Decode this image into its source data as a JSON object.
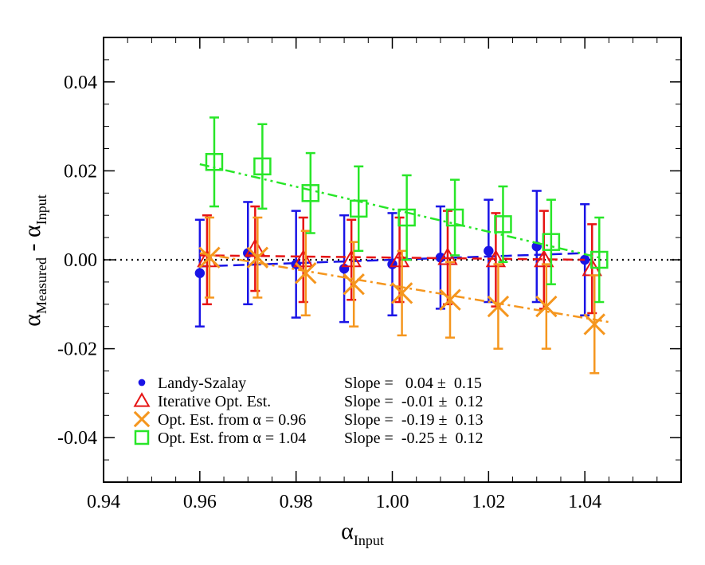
{
  "chart_data": {
    "type": "scatter",
    "xlabel": {
      "symbol": "α",
      "sub": "Input"
    },
    "ylabel": {
      "symbol": "α",
      "sub1": "Measured",
      "mid": " - ",
      "symbol2": "α",
      "sub2": "Input"
    },
    "xlim": [
      0.94,
      1.06
    ],
    "ylim": [
      -0.05,
      0.05
    ],
    "xticks": [
      {
        "value": 0.94,
        "label": "0.94"
      },
      {
        "value": 0.96,
        "label": "0.96"
      },
      {
        "value": 0.98,
        "label": "0.98"
      },
      {
        "value": 1.0,
        "label": "1.00"
      },
      {
        "value": 1.02,
        "label": "1.02"
      },
      {
        "value": 1.04,
        "label": "1.04"
      }
    ],
    "yticks": [
      {
        "value": 0.04,
        "label": "0.04"
      },
      {
        "value": 0.02,
        "label": "0.02"
      },
      {
        "value": 0.0,
        "label": "0.00"
      },
      {
        "value": -0.02,
        "label": "-0.02"
      },
      {
        "value": -0.04,
        "label": "-0.04"
      }
    ],
    "zero_line": true,
    "legend_position": "bottom-left",
    "series": [
      {
        "name": "Landy-Szalay",
        "slope_label": "Slope =   0.04 ±  0.15",
        "marker": "dot",
        "color": "#1a14e6",
        "x": [
          0.96,
          0.97,
          0.98,
          0.99,
          1.0,
          1.01,
          1.02,
          1.03,
          1.04
        ],
        "y": [
          -0.003,
          0.0015,
          -0.001,
          -0.002,
          -0.001,
          0.0005,
          0.002,
          0.003,
          0.0
        ],
        "err": [
          0.012,
          0.0115,
          0.012,
          0.012,
          0.0115,
          0.0115,
          0.0115,
          0.0125,
          0.0125
        ],
        "fit": {
          "x": [
            0.96,
            1.04
          ],
          "y": [
            -0.0015,
            0.0015
          ]
        }
      },
      {
        "name": "Iterative Opt. Est.",
        "slope_label": "Slope =  -0.01 ±  0.12",
        "marker": "triangle",
        "color": "#e61414",
        "x": [
          0.9615,
          0.9715,
          0.9815,
          0.9915,
          1.0015,
          1.0115,
          1.0215,
          1.0315,
          1.0415
        ],
        "y": [
          0.0,
          0.0025,
          0.0,
          0.0,
          0.0,
          0.0005,
          0.0,
          0.0,
          -0.002
        ],
        "err": [
          0.01,
          0.0095,
          0.0095,
          0.009,
          0.0095,
          0.0105,
          0.0105,
          0.011,
          0.01
        ],
        "fit": {
          "x": [
            0.96,
            1.04
          ],
          "y": [
            0.001,
            0.0
          ]
        }
      },
      {
        "name": "Opt. Est. from α = 0.96",
        "slope_label": "Slope =  -0.19 ±  0.13",
        "marker": "x",
        "color": "#f5961e",
        "x": [
          0.962,
          0.972,
          0.982,
          0.992,
          1.002,
          1.012,
          1.022,
          1.032,
          1.042
        ],
        "y": [
          0.0005,
          0.0005,
          -0.003,
          -0.0055,
          -0.0075,
          -0.009,
          -0.0105,
          -0.0105,
          -0.0145
        ],
        "err": [
          0.009,
          0.009,
          0.0095,
          0.0095,
          0.0095,
          0.0085,
          0.0095,
          0.0095,
          0.011
        ],
        "fit": {
          "x": [
            0.96,
            1.045
          ],
          "y": [
            0.0015,
            -0.014
          ]
        }
      },
      {
        "name": "Opt. Est. from α = 1.04",
        "slope_label": "Slope =  -0.25 ±  0.12",
        "marker": "square",
        "color": "#28e628",
        "x": [
          0.963,
          0.973,
          0.983,
          0.993,
          1.003,
          1.013,
          1.023,
          1.033,
          1.043
        ],
        "y": [
          0.022,
          0.021,
          0.015,
          0.0115,
          0.0095,
          0.0095,
          0.008,
          0.004,
          0.0
        ],
        "err": [
          0.01,
          0.0095,
          0.009,
          0.0095,
          0.0095,
          0.0085,
          0.0085,
          0.0095,
          0.0095
        ],
        "fit": {
          "x": [
            0.96,
            1.043
          ],
          "y": [
            0.0215,
            0.0005
          ]
        }
      }
    ]
  }
}
